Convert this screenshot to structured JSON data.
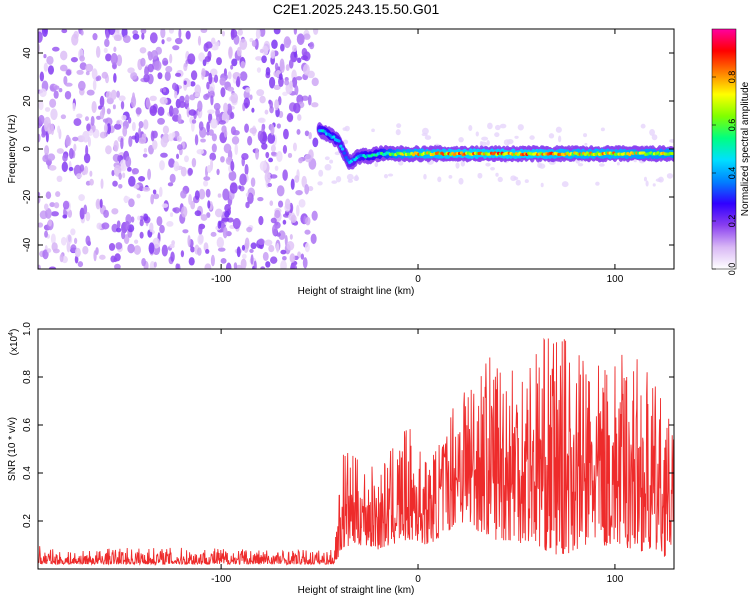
{
  "title": "C2E1.2025.243.15.50.G01",
  "chart_data": [
    {
      "type": "heatmap",
      "title": "C2E1.2025.243.15.50.G01",
      "xlabel": "Height of straight line (km)",
      "ylabel": "Frequency (Hz)",
      "xlim": [
        -193,
        130
      ],
      "ylim": [
        -50,
        50
      ],
      "x_ticks": [
        -100,
        0,
        100
      ],
      "x_tick_labels": [
        "-100",
        "0",
        "100"
      ],
      "y_ticks": [
        -40,
        -20,
        0,
        20,
        40
      ],
      "y_tick_labels": [
        "-40",
        "-20",
        "0",
        "20",
        "40"
      ],
      "colorbar": {
        "label": "Normalized spectral amplitude",
        "range": [
          0,
          1
        ],
        "ticks": [
          0.0,
          0.2,
          0.4,
          0.6,
          0.8
        ],
        "tick_labels": [
          "0.0",
          "0.2",
          "0.4",
          "0.6",
          "0.8"
        ],
        "colormap": [
          "#ffffff",
          "#d9b8f5",
          "#8a3ff0",
          "#3000ff",
          "#0080ff",
          "#00e0ff",
          "#00ff80",
          "#80ff00",
          "#ffff00",
          "#ff8000",
          "#ff0000",
          "#ff00a0"
        ]
      },
      "noise_region": {
        "x_range": [
          -193,
          -52
        ],
        "mean_amplitude": 0.1
      },
      "signal_trace": [
        {
          "x": -50,
          "freq": 8,
          "amp": 0.45
        },
        {
          "x": -45,
          "freq": 6,
          "amp": 0.5
        },
        {
          "x": -40,
          "freq": 3,
          "amp": 0.45
        },
        {
          "x": -35,
          "freq": -6,
          "amp": 0.4
        },
        {
          "x": -30,
          "freq": -3,
          "amp": 0.45
        },
        {
          "x": -25,
          "freq": -3,
          "amp": 0.5
        },
        {
          "x": -20,
          "freq": -2,
          "amp": 0.5
        },
        {
          "x": -10,
          "freq": -2,
          "amp": 0.7
        },
        {
          "x": 0,
          "freq": -2,
          "amp": 0.75
        },
        {
          "x": 20,
          "freq": -2,
          "amp": 0.8
        },
        {
          "x": 40,
          "freq": -2,
          "amp": 0.8
        },
        {
          "x": 60,
          "freq": -2,
          "amp": 0.8
        },
        {
          "x": 80,
          "freq": -2,
          "amp": 0.75
        },
        {
          "x": 100,
          "freq": -2,
          "amp": 0.75
        },
        {
          "x": 120,
          "freq": -2,
          "amp": 0.7
        },
        {
          "x": 130,
          "freq": -2,
          "amp": 0.7
        }
      ]
    },
    {
      "type": "line",
      "xlabel": "Height of straight line (km)",
      "ylabel": "SNR (10 * v/v)",
      "y_multiplier_label": "(x10",
      "y_multiplier_exp": "4",
      "y_multiplier_close": ")",
      "xlim": [
        -193,
        130
      ],
      "ylim": [
        0,
        1.0
      ],
      "x_ticks": [
        -100,
        0,
        100
      ],
      "x_tick_labels": [
        "-100",
        "0",
        "100"
      ],
      "y_ticks": [
        0.2,
        0.4,
        0.6,
        0.8,
        1.0
      ],
      "y_tick_labels": [
        "0.2",
        "0.4",
        "0.6",
        "0.8",
        "1.0"
      ],
      "color": "#ee2b2b",
      "envelope": [
        {
          "x": -193,
          "lo": 0.02,
          "hi": 0.1
        },
        {
          "x": -180,
          "lo": 0.02,
          "hi": 0.07
        },
        {
          "x": -150,
          "lo": 0.02,
          "hi": 0.09
        },
        {
          "x": -100,
          "lo": 0.02,
          "hi": 0.09
        },
        {
          "x": -60,
          "lo": 0.02,
          "hi": 0.08
        },
        {
          "x": -43,
          "lo": 0.02,
          "hi": 0.08
        },
        {
          "x": -38,
          "lo": 0.08,
          "hi": 0.52
        },
        {
          "x": -30,
          "lo": 0.1,
          "hi": 0.45
        },
        {
          "x": -20,
          "lo": 0.08,
          "hi": 0.42
        },
        {
          "x": -5,
          "lo": 0.12,
          "hi": 0.6
        },
        {
          "x": 5,
          "lo": 0.1,
          "hi": 0.45
        },
        {
          "x": 15,
          "lo": 0.15,
          "hi": 0.62
        },
        {
          "x": 20,
          "lo": 0.2,
          "hi": 0.82
        },
        {
          "x": 40,
          "lo": 0.12,
          "hi": 0.92
        },
        {
          "x": 60,
          "lo": 0.1,
          "hi": 0.95
        },
        {
          "x": 70,
          "lo": 0.05,
          "hi": 1.0
        },
        {
          "x": 90,
          "lo": 0.1,
          "hi": 0.85
        },
        {
          "x": 110,
          "lo": 0.08,
          "hi": 0.92
        },
        {
          "x": 125,
          "lo": 0.05,
          "hi": 0.7
        },
        {
          "x": 130,
          "lo": 0.1,
          "hi": 0.55
        }
      ]
    }
  ]
}
